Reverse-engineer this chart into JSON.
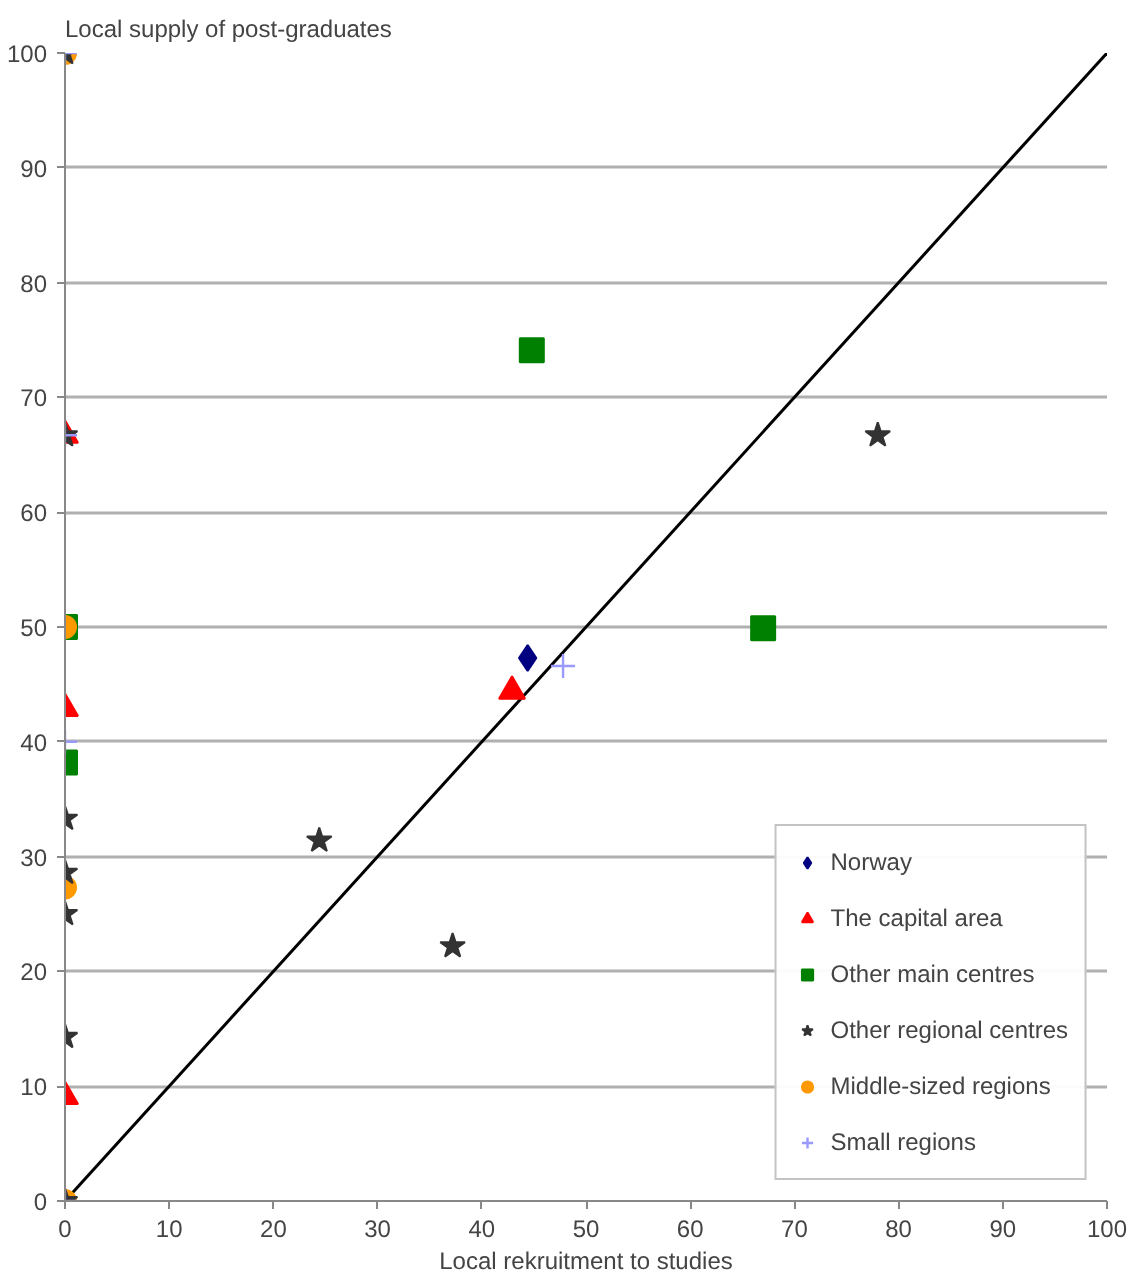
{
  "chart_data": {
    "type": "scatter",
    "title": "Local supply of post-graduates",
    "xlabel": "Local rekruitment to studies",
    "xlim": [
      0,
      100
    ],
    "ylim": [
      0,
      100
    ],
    "xticks": [
      0,
      10,
      20,
      30,
      40,
      50,
      60,
      70,
      80,
      90,
      100
    ],
    "yticks": [
      0,
      10,
      20,
      30,
      40,
      50,
      60,
      70,
      80,
      90,
      100
    ],
    "grid": "y",
    "legend": "bottom right",
    "series": [
      {
        "type": "line",
        "marker": "none",
        "color": "#000000",
        "x": [
          0,
          100
        ],
        "values": [
          0,
          100
        ]
      },
      {
        "name": "Norway",
        "marker": "diamond",
        "color": "#000080",
        "x": [
          44.4
        ],
        "values": [
          47.3
        ]
      },
      {
        "name": "The capital area",
        "marker": "triangle",
        "color": "#ff0000",
        "x": [
          42.9,
          0,
          0,
          0
        ],
        "values": [
          44.4,
          66.7,
          42.9,
          9.1
        ]
      },
      {
        "name": "Other main centres",
        "marker": "square",
        "color": "#008000",
        "x": [
          44.8,
          67,
          0,
          0
        ],
        "values": [
          74.1,
          49.9,
          50,
          38.2
        ]
      },
      {
        "name": "Other regional centres",
        "marker": "star",
        "color": "#333333",
        "x": [
          78,
          24.4,
          37.2,
          0,
          0,
          0,
          0,
          0,
          0,
          0
        ],
        "values": [
          66.7,
          31.4,
          22.2,
          100,
          66.7,
          33.3,
          28.6,
          25,
          14.3,
          0
        ]
      },
      {
        "name": "Middle-sized regions",
        "marker": "circle",
        "color": "#ff9900",
        "x": [
          0,
          0,
          0,
          0
        ],
        "values": [
          100,
          50,
          27.3,
          0
        ]
      },
      {
        "name": "Small regions",
        "marker": "cross",
        "color": "#9999ff",
        "x": [
          47.8,
          0,
          0,
          0,
          0
        ],
        "values": [
          46.6,
          100,
          66.7,
          40,
          0
        ]
      }
    ]
  }
}
